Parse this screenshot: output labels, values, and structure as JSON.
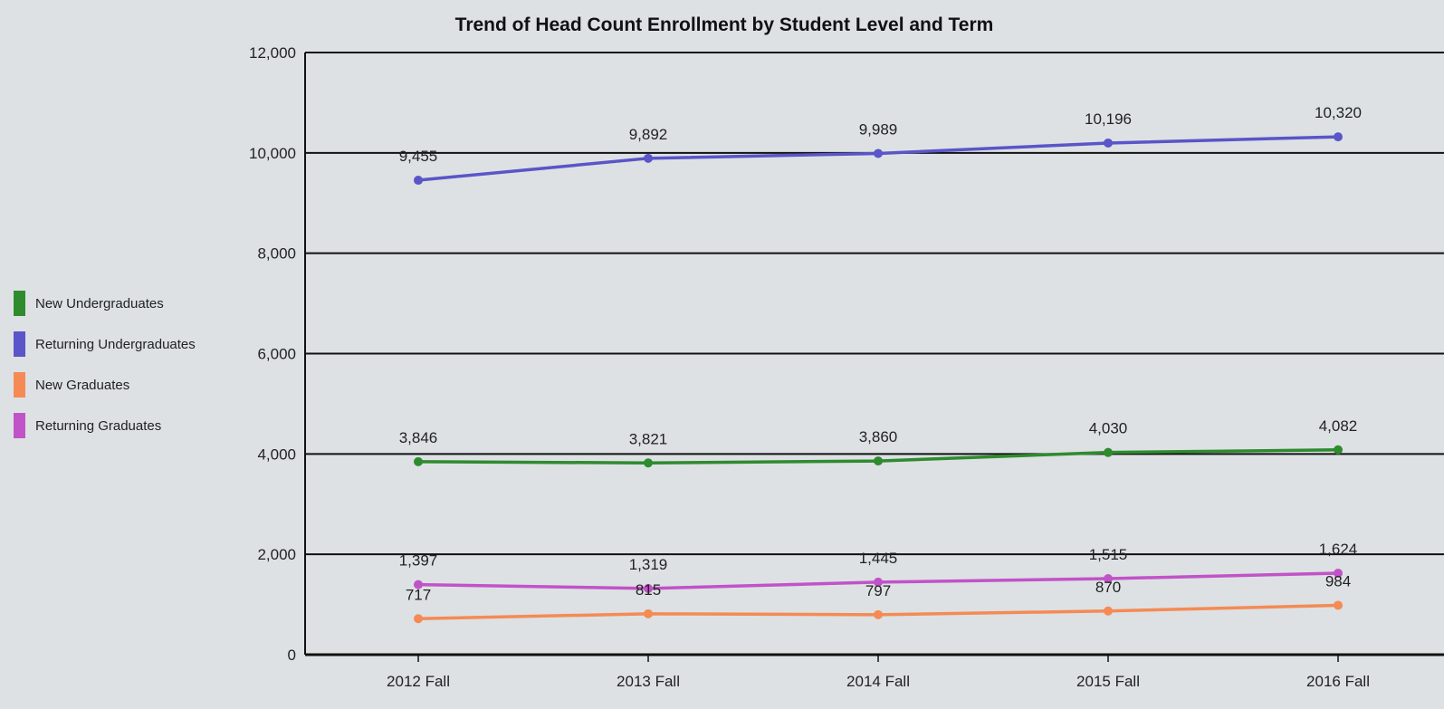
{
  "chart_data": {
    "type": "line",
    "title": "Trend of Head Count Enrollment by Student Level and Term",
    "xlabel": "",
    "ylabel": "",
    "categories": [
      "2012 Fall",
      "2013 Fall",
      "2014 Fall",
      "2015 Fall",
      "2016 Fall"
    ],
    "ylim": [
      0,
      12000
    ],
    "yticks": [
      0,
      2000,
      4000,
      6000,
      8000,
      10000,
      12000
    ],
    "ytick_labels": [
      "0",
      "2,000",
      "4,000",
      "6,000",
      "8,000",
      "10,000",
      "12,000"
    ],
    "grid": true,
    "legend_position": "left",
    "series": [
      {
        "name": "New Undergraduates",
        "color": "#2e8b2e",
        "values": [
          3846,
          3821,
          3860,
          4030,
          4082
        ],
        "labels": [
          "3,846",
          "3,821",
          "3,860",
          "4,030",
          "4,082"
        ]
      },
      {
        "name": "Returning Undergraduates",
        "color": "#5a55c8",
        "values": [
          9455,
          9892,
          9989,
          10196,
          10320
        ],
        "labels": [
          "9,455",
          "9,892",
          "9,989",
          "10,196",
          "10,320"
        ]
      },
      {
        "name": "New Graduates",
        "color": "#f58a55",
        "values": [
          717,
          815,
          797,
          870,
          984
        ],
        "labels": [
          "717",
          "815",
          "797",
          "870",
          "984"
        ]
      },
      {
        "name": "Returning Graduates",
        "color": "#c153c8",
        "values": [
          1397,
          1319,
          1445,
          1515,
          1624
        ],
        "labels": [
          "1,397",
          "1,319",
          "1,445",
          "1,515",
          "1,624"
        ]
      }
    ]
  }
}
